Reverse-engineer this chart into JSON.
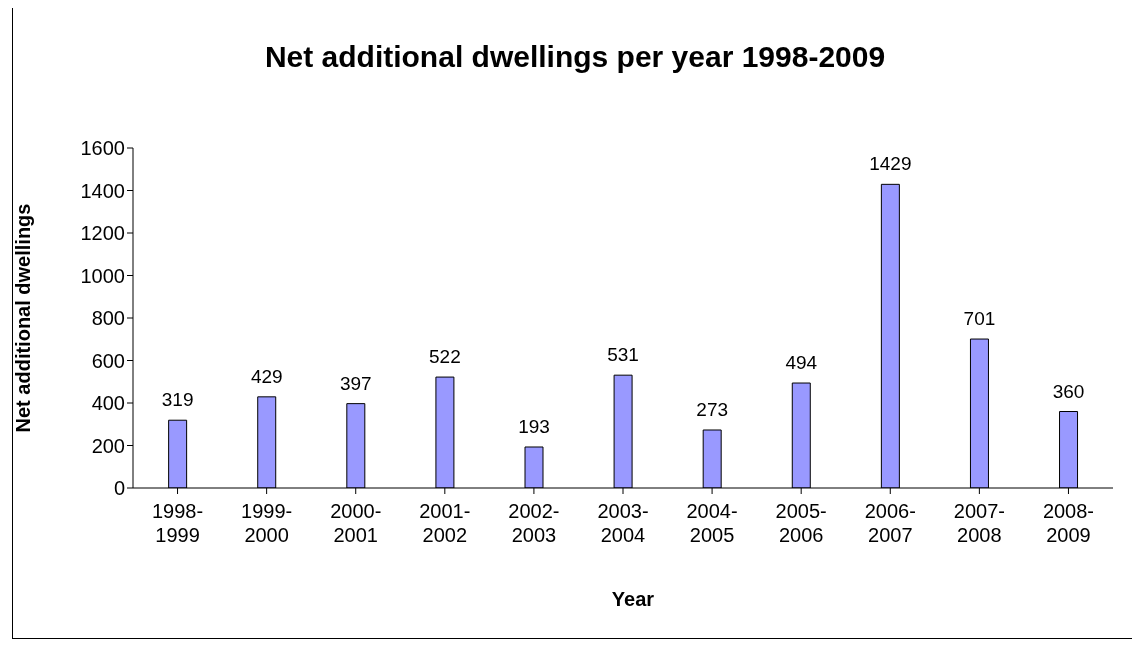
{
  "chart_data": {
    "type": "bar",
    "title": "Net additional dwellings per year 1998-2009",
    "xlabel": "Year",
    "ylabel": "Net additional dwellings",
    "categories": [
      "1998-\n1999",
      "1999-\n2000",
      "2000-\n2001",
      "2001-\n2002",
      "2002-\n2003",
      "2003-\n2004",
      "2004-\n2005",
      "2005-\n2006",
      "2006-\n2007",
      "2007-\n2008",
      "2008-\n2009"
    ],
    "values": [
      319,
      429,
      397,
      522,
      193,
      531,
      273,
      494,
      1429,
      701,
      360
    ],
    "color": "#9999ff",
    "ylim": [
      0,
      1600
    ],
    "yticks": [
      0,
      200,
      400,
      600,
      800,
      1000,
      1200,
      1400,
      1600
    ],
    "grid": false,
    "data_labels": true
  }
}
